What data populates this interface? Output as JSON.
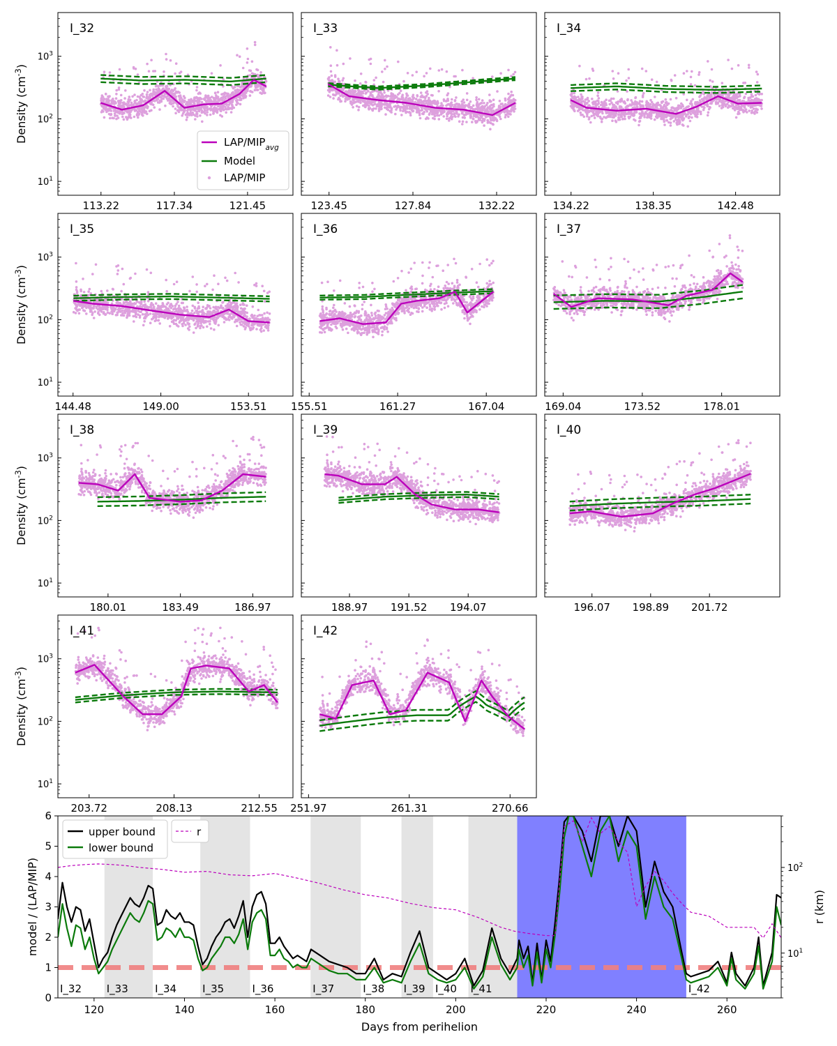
{
  "colors": {
    "avg": "#bb00bb",
    "points": "#dda0dd",
    "model": "#0a7a0a",
    "upper": "#000000",
    "lower": "#0a7a0a",
    "r": "#bb00bb",
    "shade": "#e4e4e4",
    "gap": "#8080ff",
    "unity": "#f08080"
  },
  "chart_data": [
    {
      "type": "scatter",
      "title": "I_32",
      "ylabel": "Density (cm$^{-3}$)",
      "yscale": "log",
      "ylim": [
        6,
        5000
      ],
      "xlim": [
        110.8,
        124.0
      ],
      "xticks": [
        "113.22",
        "117.34",
        "121.45"
      ],
      "legend": {
        "entries": [
          "LAP/MIP$_{avg}$",
          "Model",
          "LAP/MIP"
        ],
        "loc": "lower-right"
      },
      "avg_x": [
        113.2,
        114.4,
        115.6,
        116.8,
        117.9,
        119.0,
        120.0,
        121.0,
        121.8,
        122.5
      ],
      "avg": [
        180,
        140,
        165,
        280,
        150,
        170,
        175,
        250,
        420,
        330
      ],
      "model_x": [
        113.2,
        115.5,
        118.0,
        120.5,
        122.5
      ],
      "model": [
        440,
        410,
        420,
        395,
        440
      ],
      "model_band": 0.14
    },
    {
      "type": "scatter",
      "title": "I_33",
      "yscale": "log",
      "ylim": [
        6,
        5000
      ],
      "xlim": [
        122.0,
        134.3
      ],
      "xticks": [
        "123.45",
        "127.84",
        "132.22"
      ],
      "avg_x": [
        123.4,
        124.5,
        126.0,
        127.5,
        129.0,
        130.5,
        132.0,
        133.2
      ],
      "avg": [
        360,
        230,
        200,
        180,
        150,
        140,
        115,
        180
      ],
      "model_x": [
        123.4,
        126.0,
        128.5,
        131.0,
        133.2
      ],
      "model": [
        350,
        310,
        340,
        390,
        440
      ],
      "model_band": 0.06
    },
    {
      "type": "scatter",
      "title": "I_34",
      "yscale": "log",
      "ylim": [
        6,
        5000
      ],
      "xlim": [
        132.9,
        144.7
      ],
      "xticks": [
        "134.22",
        "138.35",
        "142.48"
      ],
      "avg_x": [
        134.2,
        135.0,
        136.5,
        138.0,
        139.5,
        140.5,
        141.6,
        142.6,
        143.8
      ],
      "avg": [
        200,
        150,
        135,
        145,
        120,
        155,
        230,
        175,
        180
      ],
      "model_x": [
        134.2,
        136.5,
        139.0,
        141.5,
        143.8
      ],
      "model": [
        310,
        330,
        300,
        290,
        305
      ],
      "model_band": 0.12
    },
    {
      "type": "scatter",
      "title": "I_35",
      "ylabel": "Density (cm$^{-3}$)",
      "yscale": "log",
      "ylim": [
        6,
        5000
      ],
      "xlim": [
        143.7,
        155.8
      ],
      "xticks": [
        "144.48",
        "149.00",
        "153.51"
      ],
      "avg_x": [
        144.5,
        145.5,
        147.0,
        148.5,
        150.0,
        151.5,
        152.5,
        153.5,
        154.6
      ],
      "avg": [
        200,
        180,
        165,
        140,
        120,
        110,
        145,
        95,
        90
      ],
      "model_x": [
        144.5,
        147.0,
        149.5,
        152.0,
        154.6
      ],
      "model": [
        220,
        230,
        235,
        225,
        215
      ],
      "model_band": 0.1
    },
    {
      "type": "scatter",
      "title": "I_36",
      "yscale": "log",
      "ylim": [
        6,
        5000
      ],
      "xlim": [
        155.0,
        170.3
      ],
      "xticks": [
        "155.51",
        "161.27",
        "167.04"
      ],
      "avg_x": [
        156.2,
        157.5,
        159.0,
        160.5,
        161.5,
        162.5,
        164.0,
        165.0,
        165.8,
        167.5
      ],
      "avg": [
        95,
        105,
        85,
        90,
        180,
        200,
        220,
        280,
        130,
        280
      ],
      "model_x": [
        156.2,
        159.0,
        162.0,
        165.0,
        167.5
      ],
      "model": [
        225,
        230,
        250,
        270,
        285
      ],
      "model_band": 0.08
    },
    {
      "type": "scatter",
      "title": "I_37",
      "yscale": "log",
      "ylim": [
        6,
        5000
      ],
      "xlim": [
        168.0,
        181.3
      ],
      "xticks": [
        "169.04",
        "173.52",
        "178.01"
      ],
      "avg_x": [
        168.5,
        169.5,
        171.0,
        173.0,
        175.0,
        176.0,
        177.5,
        178.5,
        179.2
      ],
      "avg": [
        260,
        160,
        220,
        210,
        170,
        240,
        300,
        550,
        400
      ],
      "model_x": [
        168.5,
        171.5,
        174.5,
        177.0,
        179.2
      ],
      "model": [
        190,
        200,
        195,
        230,
        280
      ],
      "model_band": 0.28
    },
    {
      "type": "scatter",
      "title": "I_38",
      "ylabel": "Density (cm$^{-3}$)",
      "yscale": "log",
      "ylim": [
        6,
        5000
      ],
      "xlim": [
        177.6,
        188.9
      ],
      "xticks": [
        "180.01",
        "183.49",
        "186.97"
      ],
      "avg_x": [
        178.6,
        179.5,
        180.5,
        181.3,
        182.0,
        183.5,
        184.5,
        185.5,
        186.5,
        187.6
      ],
      "avg": [
        400,
        380,
        300,
        550,
        230,
        200,
        210,
        300,
        550,
        500
      ],
      "model_x": [
        179.5,
        181.5,
        183.5,
        185.5,
        187.6
      ],
      "model": [
        200,
        205,
        215,
        230,
        240
      ],
      "model_band": 0.18
    },
    {
      "type": "scatter",
      "title": "I_39",
      "yscale": "log",
      "ylim": [
        6,
        5000
      ],
      "xlim": [
        186.9,
        197.0
      ],
      "xticks": [
        "188.97",
        "191.52",
        "194.07"
      ],
      "avg_x": [
        187.9,
        188.5,
        189.5,
        190.5,
        191.0,
        191.8,
        192.5,
        193.5,
        194.5,
        195.4
      ],
      "avg": [
        550,
        520,
        380,
        380,
        500,
        260,
        180,
        150,
        150,
        135
      ],
      "model_x": [
        188.5,
        190.5,
        192.5,
        194.0,
        195.4
      ],
      "model": [
        210,
        240,
        255,
        260,
        240
      ],
      "model_band": 0.1
    },
    {
      "type": "scatter",
      "title": "I_40",
      "yscale": "log",
      "ylim": [
        6,
        5000
      ],
      "xlim": [
        193.8,
        205.1
      ],
      "xticks": [
        "196.07",
        "198.89",
        "201.72"
      ],
      "avg_x": [
        195.0,
        196.0,
        197.5,
        199.0,
        200.0,
        201.0,
        202.0,
        203.0,
        203.7
      ],
      "avg": [
        130,
        140,
        115,
        130,
        190,
        260,
        330,
        450,
        560
      ],
      "model_x": [
        195.0,
        197.0,
        199.0,
        201.5,
        203.7
      ],
      "model": [
        170,
        185,
        195,
        205,
        220
      ],
      "model_band": 0.18
    },
    {
      "type": "scatter",
      "title": "I_41",
      "ylabel": "Density (cm$^{-3}$)",
      "yscale": "log",
      "ylim": [
        6,
        5000
      ],
      "xlim": [
        202.1,
        214.3
      ],
      "xticks": [
        "203.72",
        "208.13",
        "212.55"
      ],
      "avg_x": [
        203.0,
        204.0,
        205.5,
        206.5,
        207.5,
        208.5,
        209.0,
        209.8,
        211.0,
        212.0,
        212.8,
        213.5
      ],
      "avg": [
        600,
        800,
        250,
        130,
        130,
        250,
        700,
        780,
        700,
        300,
        380,
        200
      ],
      "model_x": [
        203.0,
        205.5,
        208.0,
        210.5,
        213.5
      ],
      "model": [
        220,
        260,
        290,
        300,
        290
      ],
      "model_band": 0.1
    },
    {
      "type": "scatter",
      "title": "I_42",
      "yscale": "log",
      "ylim": [
        6,
        5000
      ],
      "xlim": [
        251.3,
        273.1
      ],
      "xticks": [
        "251.97",
        "261.31",
        "270.66"
      ],
      "avg_x": [
        253.0,
        254.5,
        256.0,
        258.0,
        259.5,
        261.0,
        263.0,
        265.0,
        266.5,
        268.0,
        269.0,
        270.5,
        272.0
      ],
      "avg": [
        130,
        110,
        380,
        450,
        130,
        150,
        600,
        420,
        100,
        450,
        250,
        120,
        75
      ],
      "model_x": [
        253.0,
        256.0,
        259.0,
        262.0,
        265.0,
        267.5,
        268.5,
        270.5,
        272.0
      ],
      "model": [
        85,
        100,
        115,
        125,
        125,
        250,
        180,
        120,
        200
      ],
      "model_band": 0.22
    },
    {
      "type": "line",
      "xlabel": "Days from perihelion",
      "ylabel": "model / (LAP/MIP)",
      "y2label": "r (km)",
      "xlim": [
        112,
        272
      ],
      "ylim": [
        0,
        6
      ],
      "y2lim": [
        3,
        400
      ],
      "y2scale": "log",
      "xticks": [
        120,
        140,
        160,
        180,
        200,
        220,
        240,
        260
      ],
      "yticks": [
        0,
        1,
        2,
        3,
        4,
        5,
        6
      ],
      "legend": {
        "entries": [
          "upper bound",
          "lower bound",
          "r"
        ],
        "loc": "top-left"
      },
      "segments": [
        {
          "label": "I_32",
          "x0": 112.0,
          "x1": 122.3,
          "shaded": false
        },
        {
          "label": "I_33",
          "x0": 122.3,
          "x1": 133.0,
          "shaded": true
        },
        {
          "label": "I_34",
          "x0": 133.0,
          "x1": 143.5,
          "shaded": false
        },
        {
          "label": "I_35",
          "x0": 143.5,
          "x1": 154.5,
          "shaded": true
        },
        {
          "label": "I_36",
          "x0": 154.5,
          "x1": 167.9,
          "shaded": false
        },
        {
          "label": "I_37",
          "x0": 167.9,
          "x1": 179.0,
          "shaded": true
        },
        {
          "label": "I_38",
          "x0": 179.0,
          "x1": 188.0,
          "shaded": false
        },
        {
          "label": "I_39",
          "x0": 188.0,
          "x1": 195.0,
          "shaded": true
        },
        {
          "label": "I_40",
          "x0": 195.0,
          "x1": 202.8,
          "shaded": false
        },
        {
          "label": "I_41",
          "x0": 202.8,
          "x1": 213.6,
          "shaded": true
        },
        {
          "label": "",
          "x0": 213.6,
          "x1": 251.0,
          "gap": true
        },
        {
          "label": "I_42",
          "x0": 251.0,
          "x1": 272.0,
          "shaded": false
        }
      ],
      "reference_line": 1,
      "upper_x": [
        112,
        113,
        114,
        115,
        116,
        117,
        118,
        119,
        120,
        121,
        122,
        123,
        124,
        125,
        126,
        127,
        128,
        129,
        130,
        131,
        132,
        133,
        134,
        135,
        136,
        137,
        138,
        139,
        140,
        141,
        142,
        143,
        144,
        145,
        146,
        147,
        148,
        149,
        150,
        151,
        152,
        153,
        154,
        155,
        156,
        157,
        158,
        159,
        160,
        161,
        162,
        163,
        164,
        165,
        166,
        167,
        168,
        170,
        172,
        174,
        176,
        178,
        180,
        182,
        184,
        186,
        188,
        190,
        192,
        194,
        196,
        198,
        200,
        202,
        204,
        206,
        208,
        210,
        212,
        213.6,
        214,
        215,
        216,
        217,
        218,
        219,
        220,
        221,
        222,
        223,
        224,
        225,
        226,
        228,
        230,
        232,
        234,
        236,
        238,
        240,
        242,
        244,
        246,
        248,
        250,
        251,
        252,
        254,
        256,
        258,
        260,
        261,
        262,
        264,
        266,
        267,
        268,
        270,
        271,
        272
      ],
      "upper": [
        2.6,
        3.8,
        3.0,
        2.5,
        3.0,
        2.9,
        2.2,
        2.6,
        1.8,
        1.0,
        1.3,
        1.5,
        2.0,
        2.4,
        2.7,
        3.0,
        3.3,
        3.1,
        3.0,
        3.3,
        3.7,
        3.6,
        2.4,
        2.5,
        2.9,
        2.7,
        2.6,
        2.8,
        2.5,
        2.5,
        2.4,
        1.7,
        1.1,
        1.3,
        1.7,
        2.0,
        2.2,
        2.5,
        2.6,
        2.3,
        2.7,
        3.2,
        2.0,
        3.0,
        3.4,
        3.5,
        3.1,
        1.8,
        1.8,
        2.0,
        1.7,
        1.5,
        1.3,
        1.4,
        1.3,
        1.2,
        1.6,
        1.4,
        1.2,
        1.1,
        1.0,
        0.8,
        0.8,
        1.3,
        0.6,
        0.8,
        0.7,
        1.5,
        2.2,
        1.0,
        0.8,
        0.6,
        0.8,
        1.3,
        0.4,
        0.9,
        2.3,
        1.3,
        0.8,
        1.3,
        1.9,
        1.3,
        1.7,
        0.5,
        1.8,
        0.6,
        1.9,
        1.2,
        2.5,
        4.0,
        5.8,
        6.0,
        6.0,
        5.5,
        4.5,
        6.0,
        6.0,
        5.0,
        6.0,
        5.5,
        3.0,
        4.5,
        3.5,
        3.0,
        1.5,
        0.8,
        0.7,
        0.8,
        0.9,
        1.2,
        0.5,
        1.5,
        0.8,
        0.4,
        1.0,
        2.0,
        0.4,
        1.5,
        3.4,
        3.3
      ],
      "lower": [
        2.0,
        3.1,
        2.3,
        1.7,
        2.4,
        2.3,
        1.6,
        2.0,
        1.3,
        0.8,
        1.0,
        1.2,
        1.6,
        1.9,
        2.2,
        2.5,
        2.8,
        2.6,
        2.5,
        2.8,
        3.2,
        3.1,
        1.9,
        2.0,
        2.3,
        2.2,
        2.0,
        2.3,
        2.0,
        2.0,
        1.9,
        1.3,
        0.9,
        1.0,
        1.3,
        1.5,
        1.7,
        2.0,
        2.0,
        1.8,
        2.1,
        2.6,
        1.6,
        2.5,
        2.8,
        2.9,
        2.6,
        1.4,
        1.4,
        1.6,
        1.3,
        1.2,
        1.0,
        1.1,
        1.0,
        1.0,
        1.3,
        1.1,
        0.9,
        0.8,
        0.8,
        0.6,
        0.6,
        1.0,
        0.5,
        0.6,
        0.5,
        1.2,
        1.8,
        0.8,
        0.6,
        0.5,
        0.6,
        1.0,
        0.3,
        0.7,
        2.0,
        1.1,
        0.6,
        1.0,
        1.6,
        1.0,
        1.4,
        0.4,
        1.5,
        0.5,
        1.6,
        1.0,
        2.1,
        3.5,
        5.3,
        6.0,
        6.0,
        5.0,
        4.0,
        5.5,
        6.0,
        4.5,
        5.5,
        5.0,
        2.6,
        4.0,
        3.0,
        2.6,
        1.3,
        0.6,
        0.5,
        0.6,
        0.7,
        1.0,
        0.4,
        1.3,
        0.6,
        0.3,
        0.8,
        1.7,
        0.3,
        1.2,
        3.0,
        2.4
      ],
      "r_x": [
        112,
        115,
        118,
        121,
        124,
        127,
        130,
        135,
        140,
        145,
        150,
        155,
        160,
        165,
        170,
        175,
        180,
        185,
        190,
        195,
        200,
        205,
        210,
        213,
        216,
        220,
        222,
        224,
        226,
        228,
        230,
        232,
        234,
        236,
        238,
        240,
        242,
        244,
        246,
        248,
        250,
        252,
        256,
        260,
        264,
        266,
        268,
        270,
        272
      ],
      "r": [
        100,
        105,
        108,
        110,
        108,
        105,
        100,
        95,
        88,
        90,
        82,
        80,
        85,
        75,
        65,
        55,
        48,
        44,
        38,
        34,
        32,
        26,
        20,
        18,
        17,
        16,
        16,
        300,
        350,
        200,
        380,
        250,
        300,
        200,
        150,
        35,
        60,
        90,
        70,
        50,
        38,
        30,
        27,
        20,
        20,
        20,
        15,
        22,
        15
      ]
    }
  ]
}
